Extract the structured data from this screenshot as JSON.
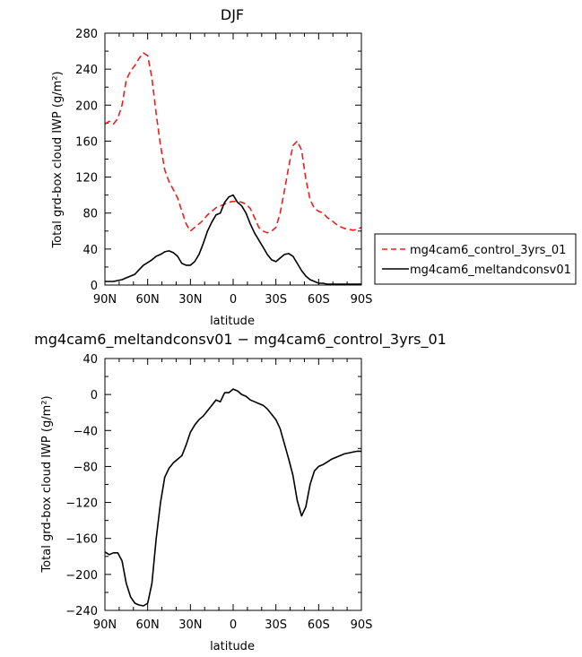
{
  "chart_data": [
    {
      "type": "line",
      "title": "DJF",
      "xlabel": "latitude",
      "ylabel": "Total grd-box cloud IWP (g/m²)",
      "xlim": [
        90,
        -90
      ],
      "ylim": [
        0,
        280
      ],
      "x_tick_values": [
        90,
        60,
        30,
        0,
        -30,
        -60,
        -90
      ],
      "x_tick_labels": [
        "90N",
        "60N",
        "30N",
        "0",
        "30S",
        "60S",
        "90S"
      ],
      "y_tick_values": [
        0,
        40,
        80,
        120,
        160,
        200,
        240,
        280
      ],
      "y_tick_labels": [
        "0",
        "40",
        "80",
        "120",
        "160",
        "200",
        "240",
        "280"
      ],
      "legend_position": "right",
      "series": [
        {
          "name": "mg4cam6_control_3yrs_01",
          "color": "#e8201e",
          "dash": "dashed",
          "x": [
            90,
            87,
            84,
            81,
            78,
            75,
            72,
            69,
            66,
            63,
            60,
            57,
            54,
            51,
            48,
            45,
            42,
            39,
            36,
            33,
            30,
            27,
            24,
            21,
            18,
            15,
            12,
            9,
            6,
            3,
            0,
            -3,
            -6,
            -9,
            -12,
            -15,
            -18,
            -21,
            -24,
            -27,
            -30,
            -33,
            -36,
            -39,
            -42,
            -45,
            -48,
            -51,
            -54,
            -57,
            -60,
            -63,
            -66,
            -69,
            -72,
            -75,
            -78,
            -81,
            -84,
            -87,
            -90
          ],
          "y": [
            179,
            182,
            179,
            185,
            200,
            228,
            238,
            244,
            252,
            258,
            255,
            230,
            190,
            155,
            128,
            115,
            106,
            97,
            82,
            68,
            60,
            64,
            68,
            72,
            78,
            82,
            86,
            88,
            90,
            92,
            93,
            93,
            92,
            90,
            85,
            75,
            64,
            60,
            58,
            60,
            64,
            80,
            105,
            132,
            155,
            160,
            150,
            118,
            95,
            85,
            82,
            80,
            75,
            72,
            68,
            65,
            63,
            62,
            61,
            62,
            64
          ]
        },
        {
          "name": "mg4cam6_meltandconsv01",
          "color": "#000000",
          "dash": "solid",
          "x": [
            90,
            87,
            84,
            81,
            78,
            75,
            72,
            69,
            66,
            63,
            60,
            57,
            54,
            51,
            48,
            45,
            42,
            39,
            36,
            33,
            30,
            27,
            24,
            21,
            18,
            15,
            12,
            9,
            6,
            3,
            0,
            -3,
            -6,
            -9,
            -12,
            -15,
            -18,
            -21,
            -24,
            -27,
            -30,
            -33,
            -36,
            -39,
            -42,
            -45,
            -48,
            -51,
            -54,
            -57,
            -60,
            -63,
            -66,
            -69,
            -72,
            -75,
            -78,
            -81,
            -84,
            -87,
            -90
          ],
          "y": [
            4,
            4,
            4,
            5,
            6,
            8,
            10,
            12,
            17,
            22,
            25,
            28,
            32,
            34,
            37,
            38,
            36,
            32,
            24,
            22,
            22,
            26,
            34,
            46,
            60,
            70,
            78,
            80,
            92,
            98,
            100,
            92,
            88,
            80,
            68,
            58,
            50,
            42,
            34,
            28,
            26,
            30,
            34,
            35,
            32,
            24,
            16,
            10,
            6,
            4,
            2,
            2,
            1,
            1,
            1,
            1,
            1,
            1,
            1,
            1,
            1
          ]
        }
      ]
    },
    {
      "type": "line",
      "title": "mg4cam6_meltandconsv01 − mg4cam6_control_3yrs_01",
      "xlabel": "latitude",
      "ylabel": "Total grd-box cloud IWP (g/m²)",
      "xlim": [
        90,
        -90
      ],
      "ylim": [
        -240,
        40
      ],
      "x_tick_values": [
        90,
        60,
        30,
        0,
        -30,
        -60,
        -90
      ],
      "x_tick_labels": [
        "90N",
        "60N",
        "30N",
        "0",
        "30S",
        "60S",
        "90S"
      ],
      "y_tick_values": [
        -240,
        -200,
        -160,
        -120,
        -80,
        -40,
        0,
        40
      ],
      "y_tick_labels": [
        "−240",
        "−200",
        "−160",
        "−120",
        "−80",
        "−40",
        "0",
        "40"
      ],
      "series": [
        {
          "color": "#000000",
          "dash": "solid",
          "x": [
            90,
            87,
            84,
            81,
            78,
            75,
            72,
            69,
            66,
            63,
            60,
            57,
            54,
            51,
            48,
            45,
            42,
            39,
            36,
            33,
            30,
            27,
            24,
            21,
            18,
            15,
            12,
            9,
            6,
            3,
            0,
            -3,
            -6,
            -9,
            -12,
            -15,
            -18,
            -21,
            -24,
            -27,
            -30,
            -33,
            -36,
            -39,
            -42,
            -45,
            -48,
            -51,
            -54,
            -57,
            -60,
            -63,
            -66,
            -69,
            -72,
            -75,
            -78,
            -81,
            -84,
            -87,
            -90
          ],
          "y": [
            -175,
            -178,
            -176,
            -176,
            -185,
            -210,
            -225,
            -232,
            -234,
            -235,
            -232,
            -210,
            -160,
            -120,
            -92,
            -82,
            -76,
            -72,
            -68,
            -56,
            -42,
            -34,
            -28,
            -24,
            -18,
            -12,
            -6,
            -8,
            2,
            2,
            6,
            4,
            0,
            -2,
            -6,
            -8,
            -10,
            -12,
            -16,
            -22,
            -28,
            -38,
            -55,
            -72,
            -90,
            -118,
            -135,
            -125,
            -100,
            -85,
            -80,
            -78,
            -75,
            -72,
            -70,
            -68,
            -66,
            -65,
            -64,
            -63,
            -63
          ]
        }
      ]
    }
  ]
}
